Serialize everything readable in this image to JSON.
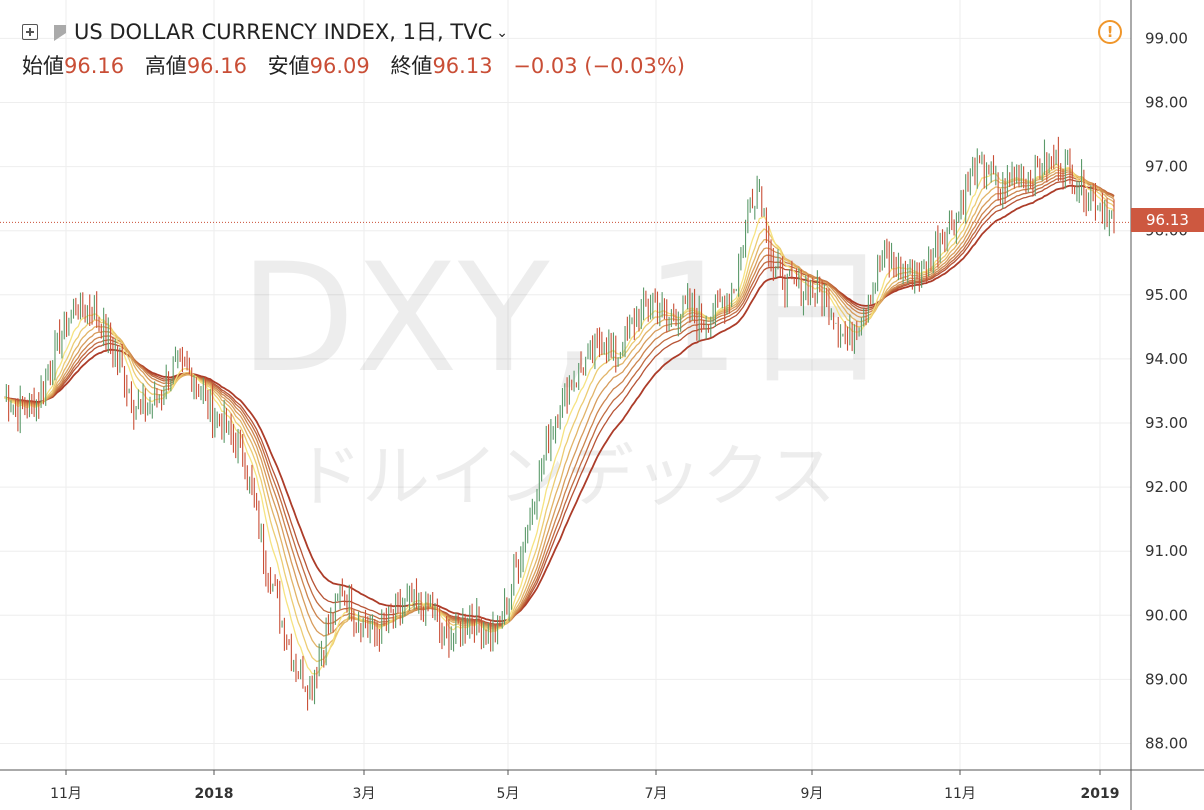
{
  "header": {
    "title": "US DOLLAR CURRENCY INDEX, 1日, TVC",
    "open_label": "始値",
    "open_value": "96.16",
    "high_label": "高値",
    "high_value": "96.16",
    "low_label": "安値",
    "low_value": "96.09",
    "close_label": "終値",
    "close_value": "96.13",
    "change": "−0.03 (−0.03%)"
  },
  "watermark": {
    "symbol": "DXY, 1日",
    "name": "ドルインデックス"
  },
  "last_price_label": "96.13",
  "colors": {
    "up": "#5b9a6a",
    "down": "#c94e36",
    "ribbon_slow": "#a8321e",
    "ribbon_fast": "#f6e27a",
    "badge": "#cd5840"
  },
  "chart_data": {
    "type": "candlestick",
    "y_axis": {
      "min": 88.0,
      "max": 99.0,
      "position": "right",
      "ticks": [
        "88.00",
        "89.00",
        "90.00",
        "91.00",
        "92.00",
        "93.00",
        "94.00",
        "95.00",
        "96.00",
        "97.00",
        "98.00",
        "99.00"
      ]
    },
    "x_axis": {
      "ticks": [
        "11月",
        "2018",
        "3月",
        "5月",
        "7月",
        "9月",
        "11月",
        "2019"
      ]
    },
    "grid": true,
    "last_price": 96.13,
    "trend_anchors": [
      [
        0,
        93.4
      ],
      [
        7,
        93.2
      ],
      [
        14,
        93.3
      ],
      [
        22,
        94.1
      ],
      [
        30,
        94.8
      ],
      [
        38,
        94.8
      ],
      [
        44,
        94.4
      ],
      [
        50,
        93.9
      ],
      [
        56,
        93.3
      ],
      [
        62,
        93.2
      ],
      [
        68,
        93.5
      ],
      [
        74,
        93.9
      ],
      [
        82,
        93.7
      ],
      [
        90,
        93.2
      ],
      [
        96,
        92.9
      ],
      [
        104,
        92.4
      ],
      [
        112,
        91.0
      ],
      [
        120,
        89.9
      ],
      [
        126,
        89.2
      ],
      [
        132,
        88.9
      ],
      [
        138,
        89.6
      ],
      [
        146,
        90.4
      ],
      [
        152,
        90.0
      ],
      [
        160,
        89.7
      ],
      [
        168,
        90.0
      ],
      [
        176,
        90.2
      ],
      [
        184,
        90.1
      ],
      [
        190,
        89.6
      ],
      [
        196,
        89.8
      ],
      [
        202,
        90.0
      ],
      [
        208,
        89.7
      ],
      [
        214,
        89.8
      ],
      [
        220,
        90.6
      ],
      [
        228,
        91.7
      ],
      [
        236,
        92.9
      ],
      [
        244,
        93.6
      ],
      [
        250,
        93.9
      ],
      [
        258,
        94.3
      ],
      [
        264,
        94.0
      ],
      [
        272,
        94.6
      ],
      [
        280,
        94.9
      ],
      [
        286,
        94.6
      ],
      [
        294,
        94.8
      ],
      [
        302,
        94.6
      ],
      [
        310,
        94.9
      ],
      [
        316,
        95.2
      ],
      [
        322,
        96.5
      ],
      [
        326,
        96.7
      ],
      [
        332,
        95.4
      ],
      [
        340,
        95.1
      ],
      [
        348,
        95.1
      ],
      [
        356,
        94.9
      ],
      [
        364,
        94.2
      ],
      [
        372,
        94.9
      ],
      [
        380,
        95.6
      ],
      [
        388,
        95.4
      ],
      [
        396,
        95.3
      ],
      [
        404,
        95.9
      ],
      [
        412,
        96.3
      ],
      [
        418,
        96.9
      ],
      [
        424,
        97.0
      ],
      [
        430,
        96.6
      ],
      [
        436,
        96.9
      ],
      [
        442,
        96.8
      ],
      [
        448,
        97.0
      ],
      [
        454,
        97.1
      ],
      [
        462,
        96.8
      ],
      [
        468,
        96.6
      ],
      [
        476,
        96.3
      ],
      [
        480,
        96.13
      ]
    ],
    "moving_averages": {
      "type": "EMA ribbon",
      "periods": [
        10,
        15,
        20,
        25,
        30,
        35,
        40,
        50
      ]
    }
  }
}
